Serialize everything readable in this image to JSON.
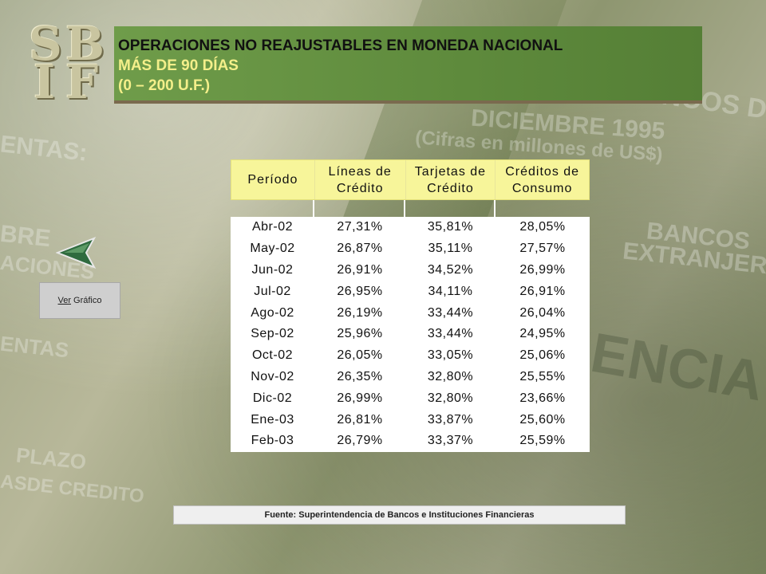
{
  "logo": {
    "letters": [
      "S",
      "B",
      "I",
      "F"
    ]
  },
  "header": {
    "title": "OPERACIONES NO REAJUSTABLES EN MONEDA NACIONAL",
    "subtitle": "MÁS DE 90 DÍAS",
    "range": "(0 – 200 U.F.)"
  },
  "nav": {
    "ver_link": "Ver",
    "ver_text": "Gráfico"
  },
  "table": {
    "headers": [
      "Período",
      "Líneas de Crédito",
      "Tarjetas de Crédito",
      "Créditos de Consumo"
    ],
    "rows": [
      [
        "Abr-02",
        "27,31%",
        "35,81%",
        "28,05%"
      ],
      [
        "May-02",
        "26,87%",
        "35,11%",
        "27,57%"
      ],
      [
        "Jun-02",
        "26,91%",
        "34,52%",
        "26,99%"
      ],
      [
        "Jul-02",
        "26,95%",
        "34,11%",
        "26,91%"
      ],
      [
        "Ago-02",
        "26,19%",
        "33,44%",
        "26,04%"
      ],
      [
        "Sep-02",
        "25,96%",
        "33,44%",
        "24,95%"
      ],
      [
        "Oct-02",
        "26,05%",
        "33,05%",
        "25,06%"
      ],
      [
        "Nov-02",
        "26,35%",
        "32,80%",
        "25,55%"
      ],
      [
        "Dic-02",
        "26,99%",
        "32,80%",
        "23,66%"
      ],
      [
        "Ene-03",
        "26,81%",
        "33,87%",
        "25,60%"
      ],
      [
        "Feb-03",
        "26,79%",
        "33,37%",
        "25,59%"
      ]
    ]
  },
  "footer": {
    "source": "Fuente: Superintendencia de Bancos e Instituciones Financieras"
  },
  "colors": {
    "banner": "#5e8a3c",
    "subtitle": "#f4ef8a",
    "table_header": "#f7f59a"
  }
}
